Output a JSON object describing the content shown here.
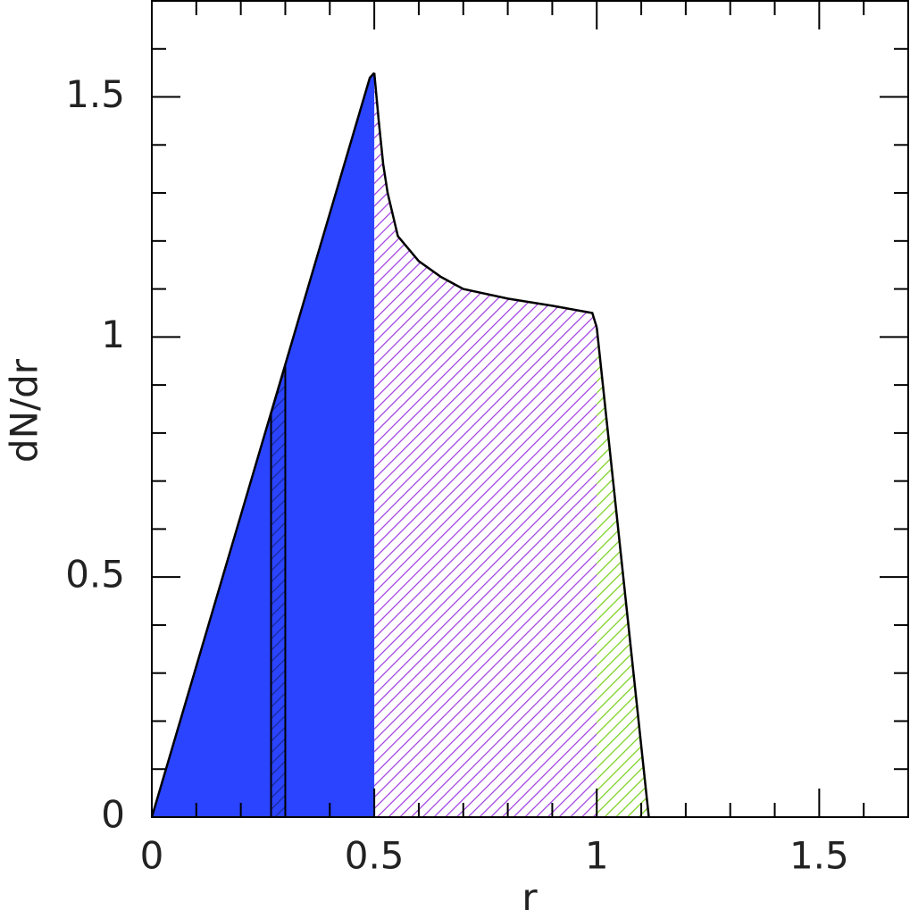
{
  "chart_data": {
    "type": "area",
    "xlabel": "r",
    "ylabel": "dN/dr",
    "xlim": [
      0,
      1.7
    ],
    "ylim": [
      0,
      1.7
    ],
    "xticks": [
      0,
      0.5,
      1,
      1.5
    ],
    "yticks": [
      0,
      0.5,
      1,
      1.5
    ],
    "xminor": [
      0.1,
      0.2,
      0.3,
      0.4,
      0.6,
      0.7,
      0.8,
      0.9,
      1.1,
      1.2,
      1.3,
      1.4,
      1.6
    ],
    "yminor": [
      0.1,
      0.2,
      0.3,
      0.4,
      0.6,
      0.7,
      0.8,
      0.9,
      1.1,
      1.2,
      1.3,
      1.4,
      1.6
    ],
    "series": [
      {
        "color": "#2a44ff",
        "fill": "solid",
        "x": [
          0,
          0.49,
          0.5
        ],
        "values": [
          0,
          1.54,
          1.55
        ]
      },
      {
        "color": "#1a2a99",
        "fill": "hatch",
        "x": [
          0.268,
          0.3
        ],
        "values": [
          0.84,
          0.94
        ]
      },
      {
        "color": "#a040e0",
        "fill": "hatch",
        "x": [
          0.5,
          0.51,
          0.52,
          0.53,
          0.553,
          0.6,
          0.65,
          0.7,
          0.8,
          0.9,
          0.99,
          1.0
        ],
        "values": [
          1.55,
          1.45,
          1.36,
          1.3,
          1.21,
          1.158,
          1.125,
          1.1,
          1.08,
          1.065,
          1.05,
          1.02
        ]
      },
      {
        "color": "#7ad020",
        "fill": "hatch",
        "x": [
          1.0,
          1.117
        ],
        "values": [
          1.02,
          0
        ]
      }
    ]
  }
}
